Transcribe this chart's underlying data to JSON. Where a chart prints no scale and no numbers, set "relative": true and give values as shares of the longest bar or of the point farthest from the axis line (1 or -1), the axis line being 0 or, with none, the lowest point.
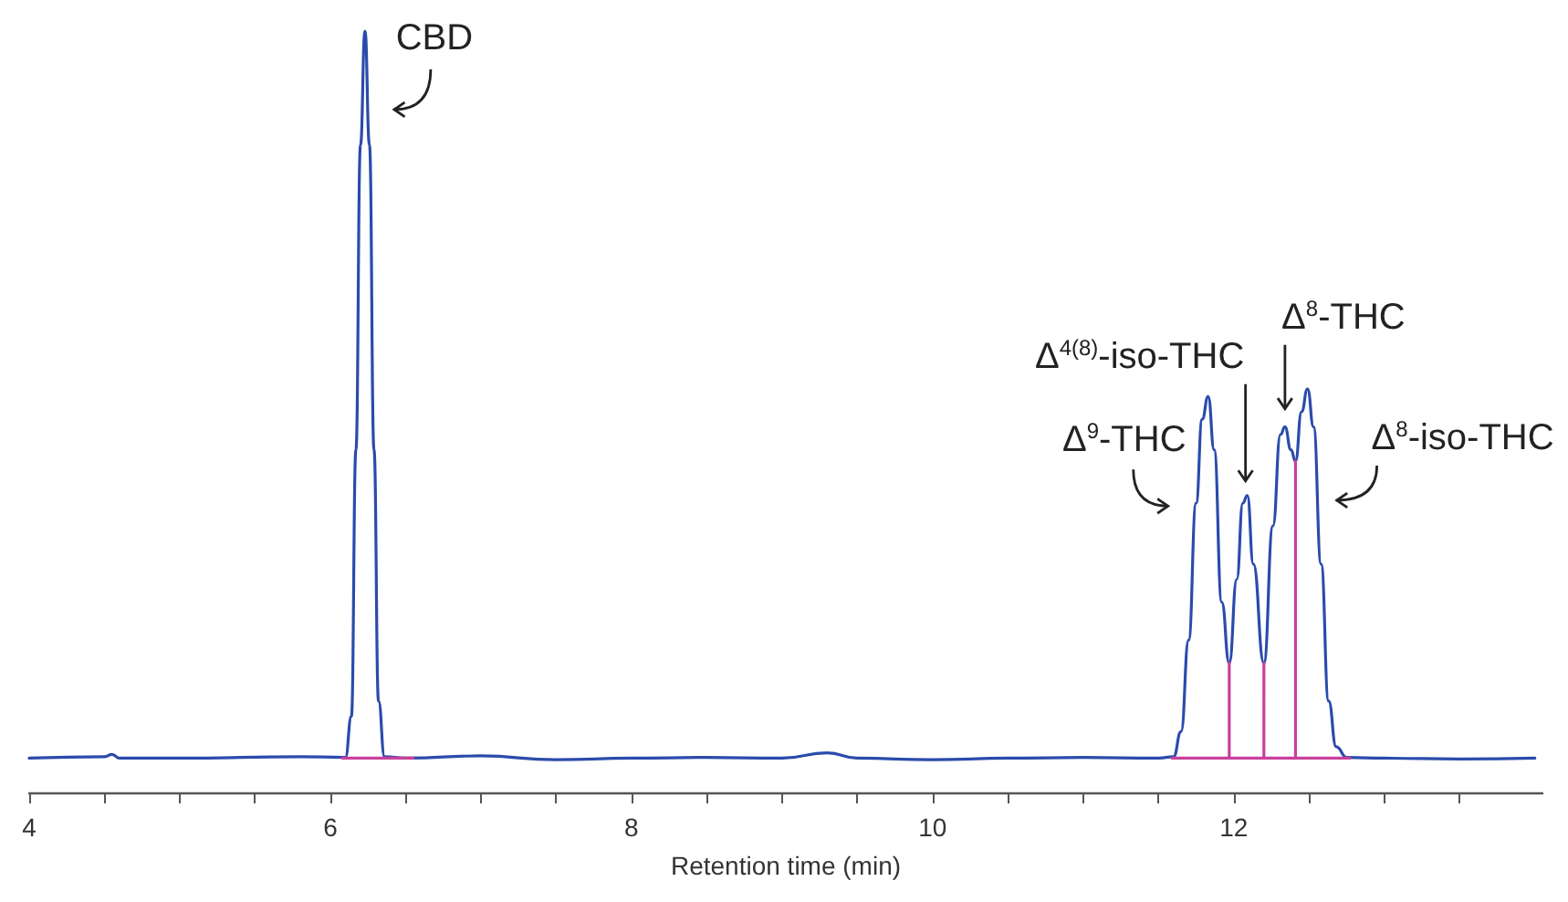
{
  "chart_data": {
    "type": "line",
    "relative": true,
    "xlabel": "Retention time (min)",
    "xlim": [
      4,
      14.05
    ],
    "xticks": [
      4,
      {
        "value": 4.5,
        "label": null
      },
      {
        "value": 5,
        "label": null
      },
      {
        "value": 5.5,
        "label": null
      },
      6,
      {
        "value": 6.5,
        "label": null
      },
      {
        "value": 7,
        "label": null
      },
      {
        "value": 7.5,
        "label": null
      },
      8,
      {
        "value": 8.5,
        "label": null
      },
      {
        "value": 9,
        "label": null
      },
      {
        "value": 9.5,
        "label": null
      },
      10,
      {
        "value": 10.5,
        "label": null
      },
      {
        "value": 11,
        "label": null
      },
      {
        "value": 11.5,
        "label": null
      },
      12,
      {
        "value": 12.5,
        "label": null
      },
      {
        "value": 13,
        "label": null
      },
      {
        "value": 13.5,
        "label": null
      }
    ],
    "marker": "none",
    "grid": false,
    "x": [
      4.0,
      4.5,
      4.55,
      4.6,
      5.0,
      5.8,
      6.1,
      6.14,
      6.17,
      6.2,
      6.23,
      6.26,
      6.29,
      6.32,
      6.36,
      6.5,
      7.0,
      7.5,
      8.0,
      8.5,
      9.0,
      9.3,
      9.5,
      10.0,
      10.5,
      11.0,
      11.5,
      11.6,
      11.65,
      11.7,
      11.75,
      11.79,
      11.83,
      11.87,
      11.92,
      11.97,
      12.02,
      12.06,
      12.09,
      12.13,
      12.2,
      12.26,
      12.31,
      12.34,
      12.38,
      12.41,
      12.45,
      12.49,
      12.53,
      12.58,
      12.63,
      12.68,
      12.75,
      13.0,
      13.5,
      14.0
    ],
    "series": [
      {
        "color": "#2b4bab",
        "values": [
          0.045,
          0.047,
          0.05,
          0.045,
          0.045,
          0.047,
          0.046,
          0.1,
          0.45,
          0.85,
          1.0,
          0.85,
          0.45,
          0.12,
          0.047,
          0.045,
          0.048,
          0.043,
          0.045,
          0.046,
          0.045,
          0.052,
          0.045,
          0.043,
          0.045,
          0.046,
          0.045,
          0.047,
          0.08,
          0.2,
          0.38,
          0.49,
          0.52,
          0.45,
          0.25,
          0.17,
          0.28,
          0.38,
          0.39,
          0.3,
          0.17,
          0.35,
          0.47,
          0.48,
          0.45,
          0.435,
          0.5,
          0.53,
          0.48,
          0.3,
          0.12,
          0.06,
          0.046,
          0.045,
          0.044,
          0.045
        ]
      },
      {
        "type": "line",
        "color": "#c8409c",
        "x": [
          6.08,
          6.55
        ],
        "values": [
          0.045,
          0.045
        ]
      },
      {
        "type": "line",
        "color": "#c8409c",
        "x": [
          11.59,
          11.97,
          11.97,
          11.97,
          12.2,
          12.2,
          12.2,
          12.41,
          12.41,
          12.41,
          12.77
        ],
        "values": [
          0.045,
          0.045,
          0.17,
          0.045,
          0.045,
          0.17,
          0.045,
          0.045,
          0.435,
          0.045,
          0.045
        ]
      }
    ],
    "annotations": [
      {
        "text": "CBD",
        "x": 6.23,
        "y": 1.0
      },
      {
        "text": "Δ$^{9}$-THC",
        "x": 11.83,
        "y": 0.52
      },
      {
        "text": "Δ$^{4(8)}$-iso-THC",
        "x": 12.09,
        "y": 0.39
      },
      {
        "text": "Δ$^{8}$-THC",
        "x": 12.34,
        "y": 0.48
      },
      {
        "text": "Δ$^{8}$-iso-THC",
        "x": 12.49,
        "y": 0.53
      }
    ]
  }
}
